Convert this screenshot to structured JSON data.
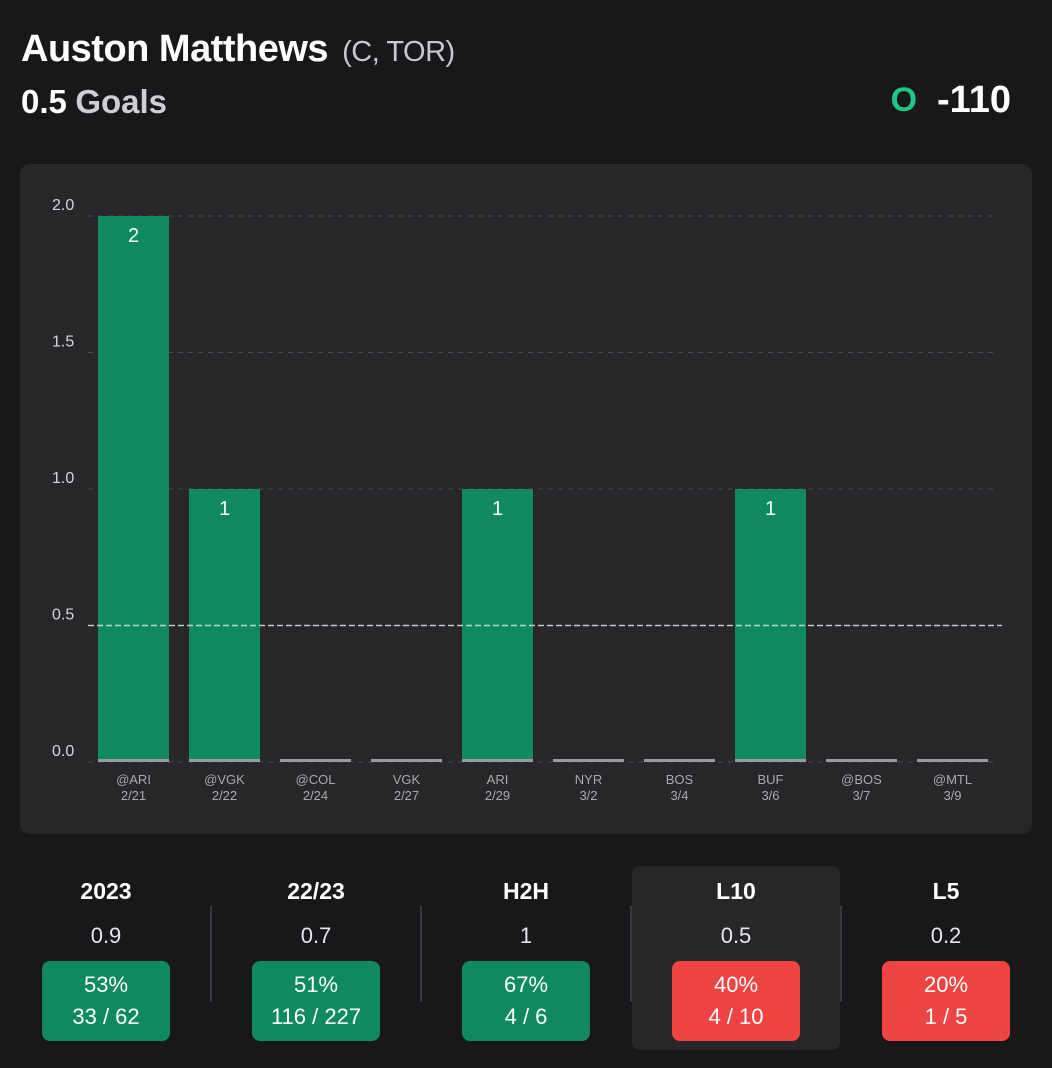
{
  "header": {
    "player_name": "Auston Matthews",
    "player_info": "(C, TOR)",
    "line": "0.5",
    "stat": "Goals",
    "side": "O",
    "odds": "-110"
  },
  "colors": {
    "bar": "#0f8a5f",
    "over": "#1fc687",
    "hit": "#0f8a5f",
    "miss": "#ef4444"
  },
  "chart_data": {
    "type": "bar",
    "title": "",
    "xlabel": "",
    "ylabel": "",
    "ylim": [
      0,
      2
    ],
    "yticks": [
      "0.0",
      "0.5",
      "1.0",
      "1.5",
      "2.0"
    ],
    "threshold": 0.5,
    "grid": true,
    "categories": [
      "@ARI",
      "@VGK",
      "@COL",
      "VGK",
      "ARI",
      "NYR",
      "BOS",
      "BUF",
      "@BOS",
      "@MTL"
    ],
    "dates": [
      "2/21",
      "2/22",
      "2/24",
      "2/27",
      "2/29",
      "3/2",
      "3/4",
      "3/6",
      "3/7",
      "3/9"
    ],
    "values": [
      2,
      1,
      0,
      0,
      1,
      0,
      0,
      1,
      0,
      0
    ]
  },
  "stats": [
    {
      "title": "2023",
      "avg": "0.9",
      "pct": "53%",
      "record": "33 / 62",
      "result": "hit"
    },
    {
      "title": "22/23",
      "avg": "0.7",
      "pct": "51%",
      "record": "116 / 227",
      "result": "hit"
    },
    {
      "title": "H2H",
      "avg": "1",
      "pct": "67%",
      "record": "4 / 6",
      "result": "hit"
    },
    {
      "title": "L10",
      "avg": "0.5",
      "pct": "40%",
      "record": "4 / 10",
      "result": "miss",
      "selected": true
    },
    {
      "title": "L5",
      "avg": "0.2",
      "pct": "20%",
      "record": "1 / 5",
      "result": "miss"
    }
  ]
}
